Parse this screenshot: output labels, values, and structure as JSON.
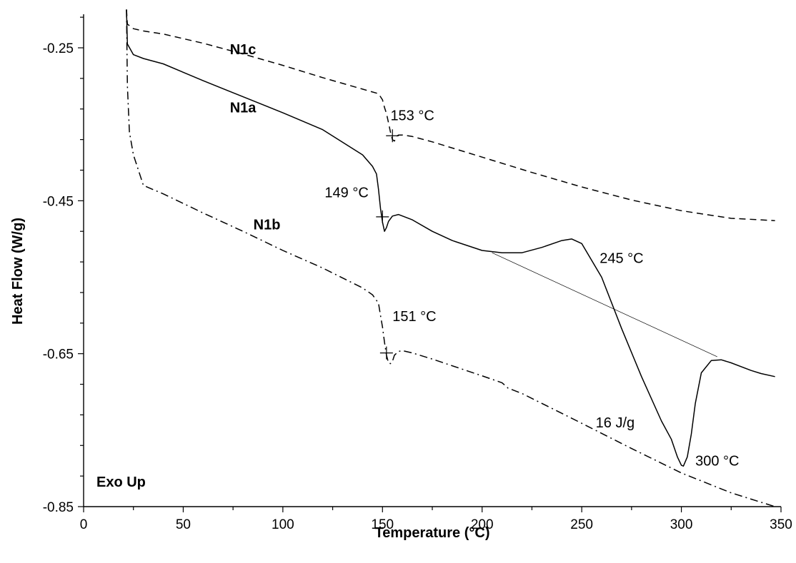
{
  "chart_data": {
    "type": "line",
    "title": "",
    "xlabel": "Temperature (°C)",
    "ylabel": "Heat Flow (W/g)",
    "xlim": [
      0,
      350
    ],
    "ylim": [
      -0.85,
      -0.2
    ],
    "x_ticks": [
      0,
      50,
      100,
      150,
      200,
      250,
      300,
      350
    ],
    "x_tick_labels": [
      "0",
      "50",
      "100",
      "150",
      "200",
      "250",
      "300",
      "350"
    ],
    "y_ticks": [
      -0.85,
      -0.65,
      -0.45,
      -0.25
    ],
    "y_tick_labels": [
      "-0.85",
      "-0.65",
      "-0.45",
      "-0.25"
    ],
    "grid": false,
    "corner_label": "Exo Up",
    "series": [
      {
        "name": "N1c",
        "dash": "dashed",
        "x": [
          21.5,
          22,
          25,
          30,
          40,
          60,
          80,
          100,
          120,
          140,
          148,
          150,
          151,
          152,
          153,
          154,
          155,
          156,
          157,
          158,
          160,
          165,
          175,
          200,
          225,
          250,
          275,
          300,
          325,
          340,
          347
        ],
        "y": [
          -0.2,
          -0.219,
          -0.225,
          -0.228,
          -0.232,
          -0.244,
          -0.258,
          -0.273,
          -0.289,
          -0.304,
          -0.31,
          -0.318,
          -0.328,
          -0.336,
          -0.348,
          -0.36,
          -0.37,
          -0.372,
          -0.366,
          -0.364,
          -0.364,
          -0.366,
          -0.373,
          -0.393,
          -0.413,
          -0.432,
          -0.449,
          -0.463,
          -0.473,
          -0.475,
          -0.476
        ]
      },
      {
        "name": "N1a",
        "dash": "solid",
        "x": [
          21.5,
          22,
          25,
          30,
          40,
          60,
          80,
          100,
          120,
          140,
          145,
          147,
          148,
          149,
          150,
          151,
          152,
          153,
          155,
          158,
          165,
          175,
          185,
          200,
          210,
          220,
          230,
          240,
          245,
          250,
          260,
          270,
          280,
          290,
          295,
          298,
          300,
          301,
          303,
          305,
          307,
          310,
          315,
          320,
          325,
          335,
          340,
          347
        ],
        "y": [
          -0.2,
          -0.245,
          -0.259,
          -0.264,
          -0.271,
          -0.293,
          -0.314,
          -0.335,
          -0.357,
          -0.39,
          -0.405,
          -0.415,
          -0.435,
          -0.46,
          -0.478,
          -0.49,
          -0.485,
          -0.477,
          -0.47,
          -0.468,
          -0.475,
          -0.49,
          -0.502,
          -0.515,
          -0.518,
          -0.518,
          -0.511,
          -0.502,
          -0.5,
          -0.506,
          -0.55,
          -0.617,
          -0.68,
          -0.738,
          -0.762,
          -0.785,
          -0.796,
          -0.797,
          -0.785,
          -0.755,
          -0.715,
          -0.675,
          -0.659,
          -0.658,
          -0.662,
          -0.672,
          -0.676,
          -0.68
        ]
      },
      {
        "name": "N1b",
        "dash": "dash-dot",
        "x": [
          21.5,
          22,
          23,
          25,
          30,
          40,
          60,
          80,
          100,
          120,
          140,
          145,
          148,
          149,
          150,
          151,
          152,
          153,
          154,
          155,
          156,
          158,
          160,
          165,
          175,
          200,
          210,
          213,
          220,
          250,
          275,
          300,
          325,
          347
        ],
        "y": [
          -0.2,
          -0.3,
          -0.36,
          -0.39,
          -0.43,
          -0.441,
          -0.466,
          -0.49,
          -0.515,
          -0.538,
          -0.564,
          -0.573,
          -0.584,
          -0.6,
          -0.615,
          -0.635,
          -0.652,
          -0.662,
          -0.663,
          -0.66,
          -0.652,
          -0.647,
          -0.646,
          -0.649,
          -0.657,
          -0.679,
          -0.688,
          -0.695,
          -0.702,
          -0.741,
          -0.774,
          -0.806,
          -0.832,
          -0.85
        ]
      }
    ],
    "baseline": {
      "x": [
        205,
        318
      ],
      "y": [
        -0.518,
        -0.654
      ]
    },
    "annotations": [
      {
        "text": "N1c",
        "x": 80,
        "y": -0.252,
        "anchor": "middle",
        "bold": true
      },
      {
        "text": "N1a",
        "x": 80,
        "y": -0.328,
        "anchor": "middle",
        "bold": true
      },
      {
        "text": "N1b",
        "x": 92,
        "y": -0.481,
        "anchor": "middle",
        "bold": true
      },
      {
        "text": "153 °C",
        "x": 154,
        "y": -0.338,
        "anchor": "start",
        "bold": false
      },
      {
        "text": "149 °C",
        "x": 143,
        "y": -0.439,
        "anchor": "end",
        "bold": false
      },
      {
        "text": "151 °C",
        "x": 155,
        "y": -0.601,
        "anchor": "start",
        "bold": false
      },
      {
        "text": "245 °C",
        "x": 259,
        "y": -0.525,
        "anchor": "start",
        "bold": false
      },
      {
        "text": "16 J/g",
        "x": 257,
        "y": -0.74,
        "anchor": "start",
        "bold": false
      },
      {
        "text": "300 °C",
        "x": 307,
        "y": -0.79,
        "anchor": "start",
        "bold": false
      }
    ],
    "markers": [
      {
        "x": 155,
        "y": -0.365
      },
      {
        "x": 150,
        "y": -0.471
      },
      {
        "x": 152,
        "y": -0.649
      }
    ]
  }
}
